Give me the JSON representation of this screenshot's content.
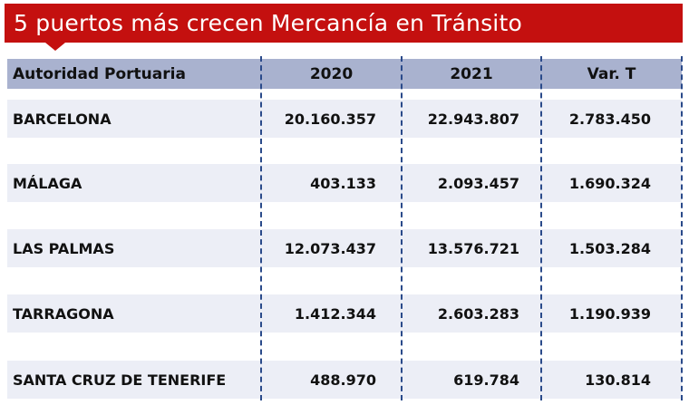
{
  "title": "5 puertos más crecen Mercancía en Tránsito",
  "table": {
    "headers": [
      "Autoridad Portuaria",
      "2020",
      "2021",
      "Var. T"
    ],
    "rows": [
      [
        "BARCELONA",
        "20.160.357",
        "22.943.807",
        "2.783.450"
      ],
      [
        "MÁLAGA",
        "403.133",
        "2.093.457",
        "1.690.324"
      ],
      [
        "LAS PALMAS",
        "12.073.437",
        "13.576.721",
        "1.503.284"
      ],
      [
        "TARRAGONA",
        "1.412.344",
        "2.603.283",
        "1.190.939"
      ],
      [
        "SANTA CRUZ DE TENERIFE",
        "488.970",
        "619.784",
        "130.814"
      ]
    ]
  },
  "colors": {
    "banner": "#c4100f",
    "header": "#a9b2cf",
    "row_band": "#eceef6"
  }
}
